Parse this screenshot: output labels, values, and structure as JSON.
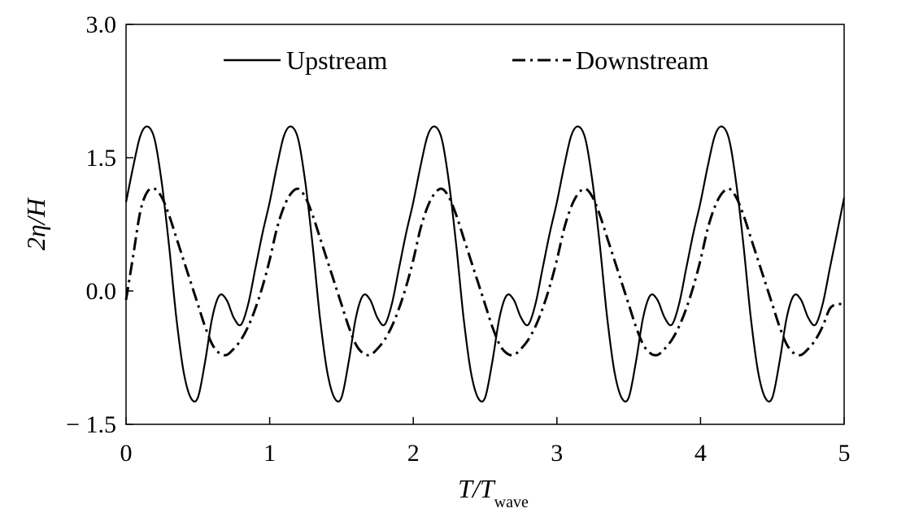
{
  "chart_data": {
    "type": "line",
    "xlabel": {
      "main": "T/T",
      "sub": "wave"
    },
    "ylabel": "2η/H",
    "xlim": [
      0,
      5
    ],
    "ylim": [
      -1.5,
      3.0
    ],
    "x_ticks": [
      0,
      1,
      2,
      3,
      4,
      5
    ],
    "x_tick_labels": [
      "0",
      "1",
      "2",
      "3",
      "4",
      "5"
    ],
    "y_ticks": [
      -1.5,
      0.0,
      1.5,
      3.0
    ],
    "y_tick_labels": [
      "− 1.5",
      "0.0",
      "1.5",
      "3.0"
    ],
    "grid": false,
    "legend_position": "top",
    "series": [
      {
        "name": "Upstream",
        "style": "solid",
        "color": "#000000",
        "x": [
          0.0,
          0.05,
          0.1,
          0.15,
          0.2,
          0.25,
          0.3,
          0.35,
          0.4,
          0.45,
          0.5,
          0.55,
          0.6,
          0.65,
          0.7,
          0.75,
          0.8,
          0.85,
          0.9,
          0.95,
          1.0,
          1.05,
          1.1,
          1.15,
          1.2,
          1.25,
          1.3,
          1.35,
          1.4,
          1.45,
          1.5,
          1.55,
          1.6,
          1.65,
          1.7,
          1.75,
          1.8,
          1.85,
          1.9,
          1.95,
          2.0,
          2.05,
          2.1,
          2.15,
          2.2,
          2.25,
          2.3,
          2.35,
          2.4,
          2.45,
          2.5,
          2.55,
          2.6,
          2.65,
          2.7,
          2.75,
          2.8,
          2.85,
          2.9,
          2.95,
          3.0,
          3.05,
          3.1,
          3.15,
          3.2,
          3.25,
          3.3,
          3.35,
          3.4,
          3.45,
          3.5,
          3.55,
          3.6,
          3.65,
          3.7,
          3.75,
          3.8,
          3.85,
          3.9,
          3.95,
          4.0,
          4.05,
          4.1,
          4.15,
          4.2,
          4.25,
          4.3,
          4.35,
          4.4,
          4.45,
          4.5,
          4.55,
          4.6,
          4.65,
          4.7,
          4.75,
          4.8,
          4.85,
          4.9,
          4.95,
          5.0
        ],
        "values": [
          1.0,
          1.4,
          1.75,
          1.85,
          1.7,
          1.2,
          0.5,
          -0.3,
          -0.9,
          -1.2,
          -1.2,
          -0.8,
          -0.3,
          -0.05,
          -0.1,
          -0.3,
          -0.38,
          -0.15,
          0.25,
          0.65,
          1.0,
          1.4,
          1.75,
          1.85,
          1.7,
          1.2,
          0.5,
          -0.3,
          -0.9,
          -1.2,
          -1.2,
          -0.8,
          -0.3,
          -0.05,
          -0.1,
          -0.3,
          -0.38,
          -0.15,
          0.25,
          0.65,
          1.0,
          1.4,
          1.75,
          1.85,
          1.7,
          1.2,
          0.5,
          -0.3,
          -0.9,
          -1.2,
          -1.2,
          -0.8,
          -0.3,
          -0.05,
          -0.1,
          -0.3,
          -0.38,
          -0.15,
          0.25,
          0.65,
          1.0,
          1.4,
          1.75,
          1.85,
          1.7,
          1.2,
          0.5,
          -0.3,
          -0.9,
          -1.2,
          -1.2,
          -0.8,
          -0.3,
          -0.05,
          -0.1,
          -0.3,
          -0.38,
          -0.15,
          0.25,
          0.65,
          1.0,
          1.4,
          1.75,
          1.85,
          1.7,
          1.2,
          0.5,
          -0.3,
          -0.9,
          -1.2,
          -1.2,
          -0.8,
          -0.3,
          -0.05,
          -0.1,
          -0.3,
          -0.38,
          -0.15,
          0.25,
          0.65,
          1.05
        ]
      },
      {
        "name": "Downstream",
        "style": "dashdot",
        "color": "#000000",
        "x": [
          0.0,
          0.05,
          0.1,
          0.15,
          0.2,
          0.25,
          0.3,
          0.35,
          0.4,
          0.45,
          0.5,
          0.55,
          0.6,
          0.65,
          0.7,
          0.75,
          0.8,
          0.85,
          0.9,
          0.95,
          1.0,
          1.05,
          1.1,
          1.15,
          1.2,
          1.25,
          1.3,
          1.35,
          1.4,
          1.45,
          1.5,
          1.55,
          1.6,
          1.65,
          1.7,
          1.75,
          1.8,
          1.85,
          1.9,
          1.95,
          2.0,
          2.05,
          2.1,
          2.15,
          2.2,
          2.25,
          2.3,
          2.35,
          2.4,
          2.45,
          2.5,
          2.55,
          2.6,
          2.65,
          2.7,
          2.75,
          2.8,
          2.85,
          2.9,
          2.95,
          3.0,
          3.05,
          3.1,
          3.15,
          3.2,
          3.25,
          3.3,
          3.35,
          3.4,
          3.45,
          3.5,
          3.55,
          3.6,
          3.65,
          3.7,
          3.75,
          3.8,
          3.85,
          3.9,
          3.95,
          4.0,
          4.05,
          4.1,
          4.15,
          4.2,
          4.25,
          4.3,
          4.35,
          4.4,
          4.45,
          4.5,
          4.55,
          4.6,
          4.65,
          4.7,
          4.75,
          4.8,
          4.85,
          4.9,
          4.95,
          5.0
        ],
        "values": [
          -0.1,
          0.4,
          0.9,
          1.12,
          1.15,
          1.05,
          0.85,
          0.6,
          0.35,
          0.1,
          -0.15,
          -0.4,
          -0.6,
          -0.7,
          -0.72,
          -0.65,
          -0.55,
          -0.4,
          -0.2,
          0.05,
          0.35,
          0.7,
          0.95,
          1.1,
          1.15,
          1.05,
          0.85,
          0.6,
          0.35,
          0.1,
          -0.15,
          -0.4,
          -0.6,
          -0.7,
          -0.72,
          -0.65,
          -0.55,
          -0.4,
          -0.2,
          0.05,
          0.35,
          0.7,
          0.95,
          1.1,
          1.15,
          1.05,
          0.85,
          0.6,
          0.35,
          0.1,
          -0.15,
          -0.4,
          -0.6,
          -0.7,
          -0.72,
          -0.65,
          -0.55,
          -0.4,
          -0.2,
          0.05,
          0.35,
          0.7,
          0.95,
          1.1,
          1.15,
          1.05,
          0.85,
          0.6,
          0.35,
          0.1,
          -0.15,
          -0.4,
          -0.6,
          -0.7,
          -0.72,
          -0.65,
          -0.55,
          -0.4,
          -0.2,
          0.05,
          0.35,
          0.7,
          0.95,
          1.1,
          1.15,
          1.05,
          0.85,
          0.6,
          0.35,
          0.1,
          -0.15,
          -0.4,
          -0.6,
          -0.7,
          -0.72,
          -0.65,
          -0.55,
          -0.4,
          -0.2,
          -0.15,
          -0.15
        ]
      }
    ]
  }
}
